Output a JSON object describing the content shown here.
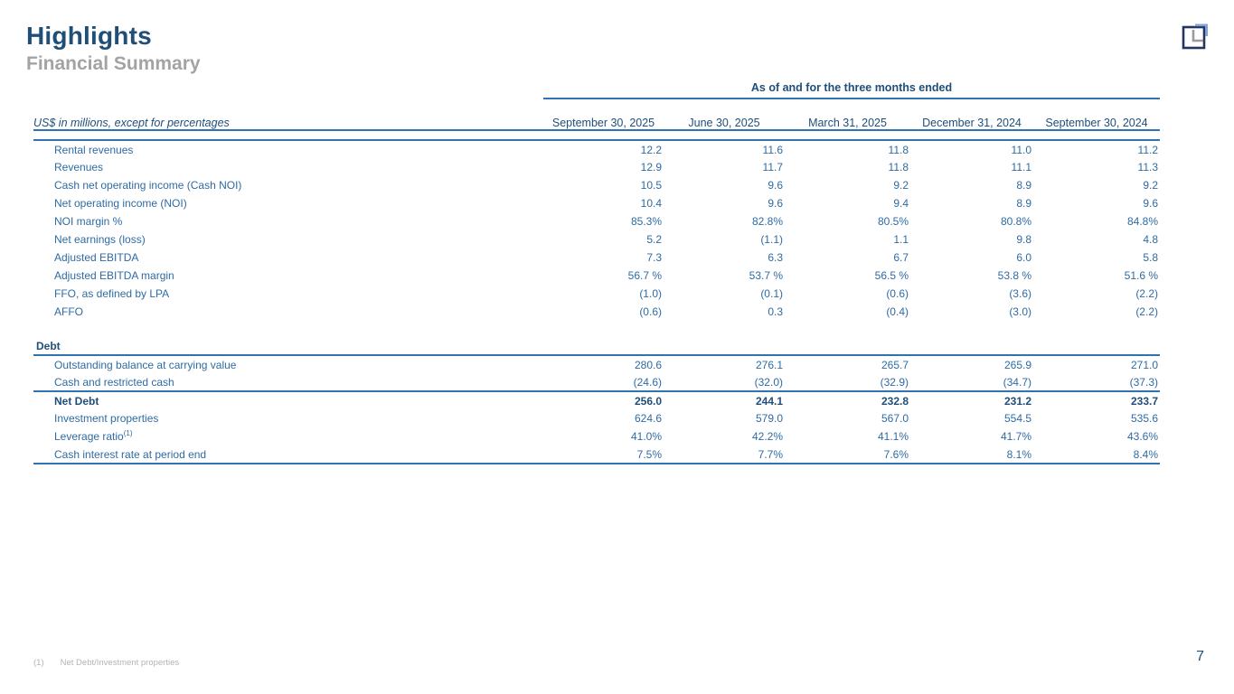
{
  "slide": {
    "title": "Highlights",
    "subtitle": "Financial Summary",
    "page_number": "7",
    "footnote": {
      "marker": "(1)",
      "text": "Net Debt/Investment properties"
    }
  },
  "colors": {
    "navy": "#1F4E79",
    "table_blue": "#2E6BA4",
    "rule_blue": "#2E74B5",
    "subtitle_gray": "#A3A3A3",
    "footnote_gray": "#B3B3B3",
    "logo_navy": "#24365E",
    "logo_gray": "#9B9B9B",
    "logo_light_blue": "#7CA6D8"
  },
  "table": {
    "span_header": "As of and for the three months ended",
    "unit_label": "US$ in millions, except for percentages",
    "columns": [
      "September 30, 2025",
      "June 30, 2025",
      "March 31, 2025",
      "December 31, 2024",
      "September 30, 2024"
    ],
    "rows": [
      {
        "label": "Rental revenues",
        "values": [
          "12.2",
          "11.6",
          "11.8",
          "11.0",
          "11.2"
        ]
      },
      {
        "label": "Revenues",
        "values": [
          "12.9",
          "11.7",
          "11.8",
          "11.1",
          "11.3"
        ]
      },
      {
        "label": "Cash net operating income (Cash NOI)",
        "values": [
          "10.5",
          "9.6",
          "9.2",
          "8.9",
          "9.2"
        ]
      },
      {
        "label": "Net operating income (NOI)",
        "values": [
          "10.4",
          "9.6",
          "9.4",
          "8.9",
          "9.6"
        ]
      },
      {
        "label": "NOI margin %",
        "values": [
          "85.3%",
          "82.8%",
          "80.5%",
          "80.8%",
          "84.8%"
        ]
      },
      {
        "label": "Net earnings (loss)",
        "values": [
          "5.2",
          "(1.1)",
          "1.1",
          "9.8",
          "4.8"
        ]
      },
      {
        "label": "Adjusted EBITDA",
        "values": [
          "7.3",
          "6.3",
          "6.7",
          "6.0",
          "5.8"
        ]
      },
      {
        "label": "Adjusted EBITDA margin",
        "values": [
          "56.7 %",
          "53.7 %",
          "56.5 %",
          "53.8 %",
          "51.6 %"
        ]
      },
      {
        "label": "FFO, as defined by LPA",
        "values": [
          "(1.0)",
          "(0.1)",
          "(0.6)",
          "(3.6)",
          "(2.2)"
        ]
      },
      {
        "label": "AFFO",
        "values": [
          "(0.6)",
          "0.3",
          "(0.4)",
          "(3.0)",
          "(2.2)"
        ]
      }
    ],
    "debt_section": {
      "label": "Debt",
      "rows": [
        {
          "label": "Outstanding balance at carrying value",
          "values": [
            "280.6",
            "276.1",
            "265.7",
            "265.9",
            "271.0"
          ]
        },
        {
          "label": "Cash and restricted cash",
          "values": [
            "(24.6)",
            "(32.0)",
            "(32.9)",
            "(34.7)",
            "(37.3)"
          ],
          "rule_below": true
        },
        {
          "label": "Net Debt",
          "values": [
            "256.0",
            "244.1",
            "232.8",
            "231.2",
            "233.7"
          ],
          "bold": true
        },
        {
          "label": "Investment properties",
          "values": [
            "624.6",
            "579.0",
            "567.0",
            "554.5",
            "535.6"
          ]
        },
        {
          "label": "Leverage ratio",
          "sup": "(1)",
          "values": [
            "41.0%",
            "42.2%",
            "41.1%",
            "41.7%",
            "43.6%"
          ]
        },
        {
          "label": "Cash interest rate at period end",
          "values": [
            "7.5%",
            "7.7%",
            "7.6%",
            "8.1%",
            "8.4%"
          ],
          "rule_below": true
        }
      ]
    }
  }
}
